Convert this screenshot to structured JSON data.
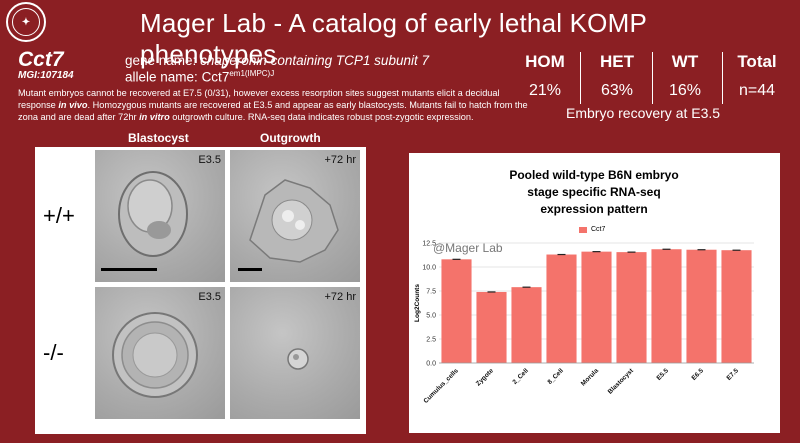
{
  "header": {
    "title": "Mager Lab - A catalog of early lethal KOMP phenotypes"
  },
  "gene": {
    "symbol": "Cct7",
    "mgi": "MGI:107184",
    "name_label": "gene name:",
    "name": "chaperonin containing TCP1 subunit 7",
    "allele_label": "allele name:",
    "allele": "Cct7",
    "allele_sup": "em1(IMPC)J"
  },
  "summary": {
    "part1": "Mutant embryos cannot be recovered at E7.5 (0/31), however excess resorption sites suggest mutants elicit a decidual response ",
    "em1": "in vivo",
    "part2": ". Homozygous mutants are recovered at E3.5 and appear as early blastocysts. Mutants fail to hatch from the zona and are dead after 72hr ",
    "em2": "in vitro",
    "part3": " outgrowth culture. RNA-seq data indicates robust post-zygotic expression."
  },
  "recovery": {
    "columns": [
      {
        "label": "HOM",
        "value": "21%"
      },
      {
        "label": "HET",
        "value": "63%"
      },
      {
        "label": "WT",
        "value": "16%"
      },
      {
        "label": "Total",
        "value": "n=44"
      }
    ],
    "caption": "Embryo recovery at E3.5"
  },
  "images": {
    "col1": "Blastocyst",
    "col2": "Outgrowth",
    "row1": "+/+",
    "row2": "-/-",
    "stage_e35": "E3.5",
    "stage_72": "+72 hr"
  },
  "chart_data": {
    "type": "bar",
    "title_lines": [
      "Pooled wild-type B6N embryo",
      "stage specific RNA-seq",
      "expression pattern"
    ],
    "watermark": "@Mager Lab",
    "ylabel": "Log2Counts",
    "ylim": [
      0,
      12.5
    ],
    "yticks": [
      "0.0",
      "2.5",
      "5.0",
      "7.5",
      "10.0",
      "12.5"
    ],
    "categories": [
      "Cumulus_cells",
      "Zygote",
      "2_Cell",
      "8_Cell",
      "Morula",
      "Blastocyst",
      "E5.5",
      "E6.5",
      "E7.5"
    ],
    "series": [
      {
        "name": "Cct7",
        "values": [
          10.8,
          7.4,
          7.9,
          11.3,
          11.6,
          11.55,
          11.85,
          11.8,
          11.75
        ],
        "color": "#f4736b"
      }
    ],
    "grid": true,
    "legend": "top"
  }
}
